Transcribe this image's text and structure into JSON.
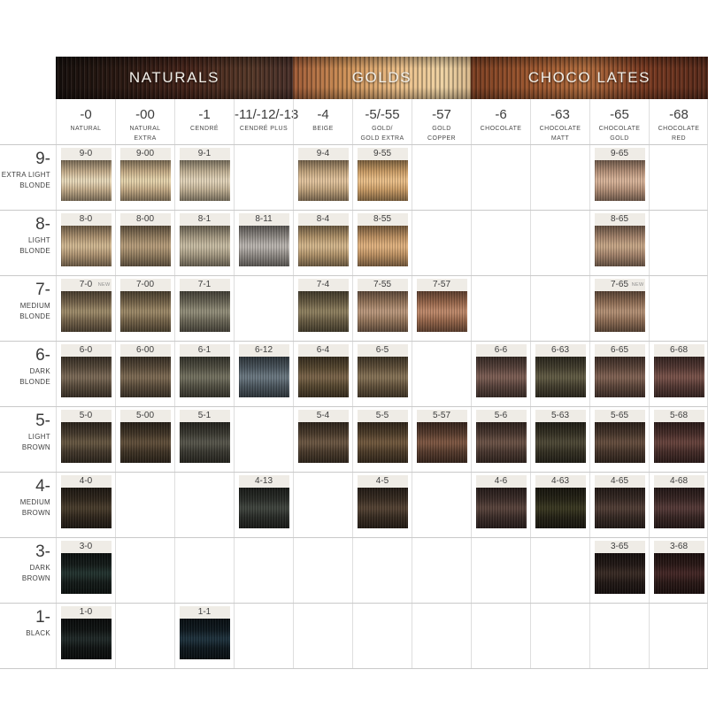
{
  "chart_data": {
    "type": "table",
    "description_visible_text_only": true,
    "new_badge_label": "NEW",
    "groups": [
      {
        "label": "NATURALS",
        "col_span": 4,
        "band_stops": [
          "#17100d",
          "#2c1a13 28%",
          "#46241a 55%",
          "#563828 82%",
          "#49302a"
        ]
      },
      {
        "label": "GOLDS",
        "col_span": 3,
        "band_stops": [
          "#a05b36",
          "#cf9258 30%",
          "#ecbf88 60%",
          "#eed3a4 85%",
          "#d9b88b"
        ]
      },
      {
        "label": "CHOCO LATES",
        "col_span": 4,
        "band_stops": [
          "#7c3f22",
          "#a25b31 30%",
          "#b26d3e 48%",
          "#7c3c22 72%",
          "#5a2b1b"
        ]
      }
    ],
    "columns": [
      {
        "code": "-0",
        "name": "NATURAL"
      },
      {
        "code": "-00",
        "name": "NATURAL\nEXTRA"
      },
      {
        "code": "-1",
        "name": "CENDRÉ"
      },
      {
        "code": "-11/-12/-13",
        "name": "CENDRÉ PLUS"
      },
      {
        "code": "-4",
        "name": "BEIGE"
      },
      {
        "code": "-5/-55",
        "name": "GOLD/\nGOLD EXTRA"
      },
      {
        "code": "-57",
        "name": "GOLD\nCOPPER"
      },
      {
        "code": "-6",
        "name": "CHOCOLATE"
      },
      {
        "code": "-63",
        "name": "CHOCOLATE\nMATT"
      },
      {
        "code": "-65",
        "name": "CHOCOLATE\nGOLD"
      },
      {
        "code": "-68",
        "name": "CHOCOLATE\nRED"
      }
    ],
    "rows": [
      {
        "code": "9-",
        "name": "EXTRA LIGHT\nBLONDE",
        "cells": [
          {
            "code": "9-0",
            "base": "#c3ac8b",
            "sheen": "#e6d7b8"
          },
          {
            "code": "9-00",
            "base": "#c3aa85",
            "sheen": "#e4d2ab"
          },
          {
            "code": "9-1",
            "base": "#c0b094",
            "sheen": "#e0d2b8"
          },
          null,
          {
            "code": "9-4",
            "base": "#bfa27c",
            "sheen": "#e0c29c"
          },
          {
            "code": "9-55",
            "base": "#c99c66",
            "sheen": "#e9be88"
          },
          null,
          null,
          null,
          {
            "code": "9-65",
            "base": "#b39078",
            "sheen": "#d6b298"
          },
          null
        ]
      },
      {
        "code": "8-",
        "name": "LIGHT\nBLONDE",
        "cells": [
          {
            "code": "8-0",
            "base": "#ab9170",
            "sheen": "#cfb690"
          },
          {
            "code": "8-00",
            "base": "#917c5f",
            "sheen": "#b49b79"
          },
          {
            "code": "8-1",
            "base": "#a39881",
            "sheen": "#c6bba2"
          },
          {
            "code": "8-11",
            "base": "#908b86",
            "sheen": "#b8b3ae"
          },
          {
            "code": "8-4",
            "base": "#ae9169",
            "sheen": "#d2b58b"
          },
          {
            "code": "8-55",
            "base": "#ba8f61",
            "sheen": "#deb07e"
          },
          null,
          null,
          null,
          {
            "code": "8-65",
            "base": "#a2826a",
            "sheen": "#c5a586"
          },
          null
        ]
      },
      {
        "code": "7-",
        "name": "MEDIUM\nBLONDE",
        "cells": [
          {
            "code": "7-0",
            "base": "#74634b",
            "sheen": "#9b8968",
            "badge": true
          },
          {
            "code": "7-00",
            "base": "#75644a",
            "sheen": "#9a8766"
          },
          {
            "code": "7-1",
            "base": "#6c6858",
            "sheen": "#908c78"
          },
          null,
          {
            "code": "7-4",
            "base": "#695d44",
            "sheen": "#8c7e5e"
          },
          {
            "code": "7-55",
            "base": "#94755b",
            "sheen": "#b8967b"
          },
          {
            "code": "7-57",
            "base": "#96664b",
            "sheen": "#bc8769"
          },
          null,
          null,
          {
            "code": "7-65",
            "base": "#8e6d55",
            "sheen": "#b18e73",
            "badge": true
          },
          null
        ]
      },
      {
        "code": "6-",
        "name": "DARK\nBLONDE",
        "cells": [
          {
            "code": "6-0",
            "base": "#574a3b",
            "sheen": "#796855"
          },
          {
            "code": "6-00",
            "base": "#594b3a",
            "sheen": "#7b6952"
          },
          {
            "code": "6-1",
            "base": "#525043",
            "sheen": "#72705f"
          },
          {
            "code": "6-12",
            "base": "#4a555d",
            "sheen": "#69767f"
          },
          {
            "code": "6-4",
            "base": "#564730",
            "sheen": "#786348"
          },
          {
            "code": "6-5",
            "base": "#61513b",
            "sheen": "#847155"
          },
          null,
          {
            "code": "6-6",
            "base": "#57423b",
            "sheen": "#7b5d53"
          },
          {
            "code": "6-63",
            "base": "#433e2e",
            "sheen": "#605a43"
          },
          {
            "code": "6-65",
            "base": "#5c453a",
            "sheen": "#7f6152"
          },
          {
            "code": "6-68",
            "base": "#533833",
            "sheen": "#775149"
          }
        ]
      },
      {
        "code": "5-",
        "name": "LIGHT\nBROWN",
        "cells": [
          {
            "code": "5-0",
            "base": "#44392c",
            "sheen": "#645540"
          },
          {
            "code": "5-00",
            "base": "#403426",
            "sheen": "#5e4d39"
          },
          {
            "code": "5-1",
            "base": "#3a3931",
            "sheen": "#55544a"
          },
          null,
          {
            "code": "5-4",
            "base": "#493a2b",
            "sheen": "#695541"
          },
          {
            "code": "5-5",
            "base": "#4d3c29",
            "sheen": "#6f573d"
          },
          {
            "code": "5-57",
            "base": "#563b2d",
            "sheen": "#7b5541"
          },
          {
            "code": "5-6",
            "base": "#49372f",
            "sheen": "#695145"
          },
          {
            "code": "5-63",
            "base": "#343023",
            "sheen": "#4c4735"
          },
          {
            "code": "5-65",
            "base": "#45342a",
            "sheen": "#634c3d"
          },
          {
            "code": "5-68",
            "base": "#452c28",
            "sheen": "#64413b"
          }
        ]
      },
      {
        "code": "4-",
        "name": "MEDIUM\nBROWN",
        "cells": [
          {
            "code": "4-0",
            "base": "#2f261c",
            "sheen": "#473b2b"
          },
          null,
          null,
          {
            "code": "4-13",
            "base": "#282b27",
            "sheen": "#3e433d"
          },
          null,
          {
            "code": "4-5",
            "base": "#372b21",
            "sheen": "#524132"
          },
          null,
          {
            "code": "4-6",
            "base": "#3b2c28",
            "sheen": "#57423b"
          },
          {
            "code": "4-63",
            "base": "#242215",
            "sheen": "#383620"
          },
          {
            "code": "4-65",
            "base": "#352823",
            "sheen": "#4f3c34"
          },
          {
            "code": "4-68",
            "base": "#372523",
            "sheen": "#533836"
          }
        ]
      },
      {
        "code": "3-",
        "name": "DARK\nBROWN",
        "cells": [
          {
            "code": "3-0",
            "base": "#131a18",
            "sheen": "#21312d"
          },
          null,
          null,
          null,
          null,
          null,
          null,
          null,
          null,
          {
            "code": "3-65",
            "base": "#211815",
            "sheen": "#372923"
          },
          {
            "code": "3-68",
            "base": "#291816",
            "sheen": "#412524"
          }
        ]
      },
      {
        "code": "1-",
        "name": "BLACK",
        "cells": [
          {
            "code": "1-0",
            "base": "#0f1312",
            "sheen": "#1e2726"
          },
          null,
          {
            "code": "1-1",
            "base": "#0e181e",
            "sheen": "#1d303b"
          },
          null,
          null,
          null,
          null,
          null,
          null,
          null,
          null
        ]
      }
    ]
  }
}
